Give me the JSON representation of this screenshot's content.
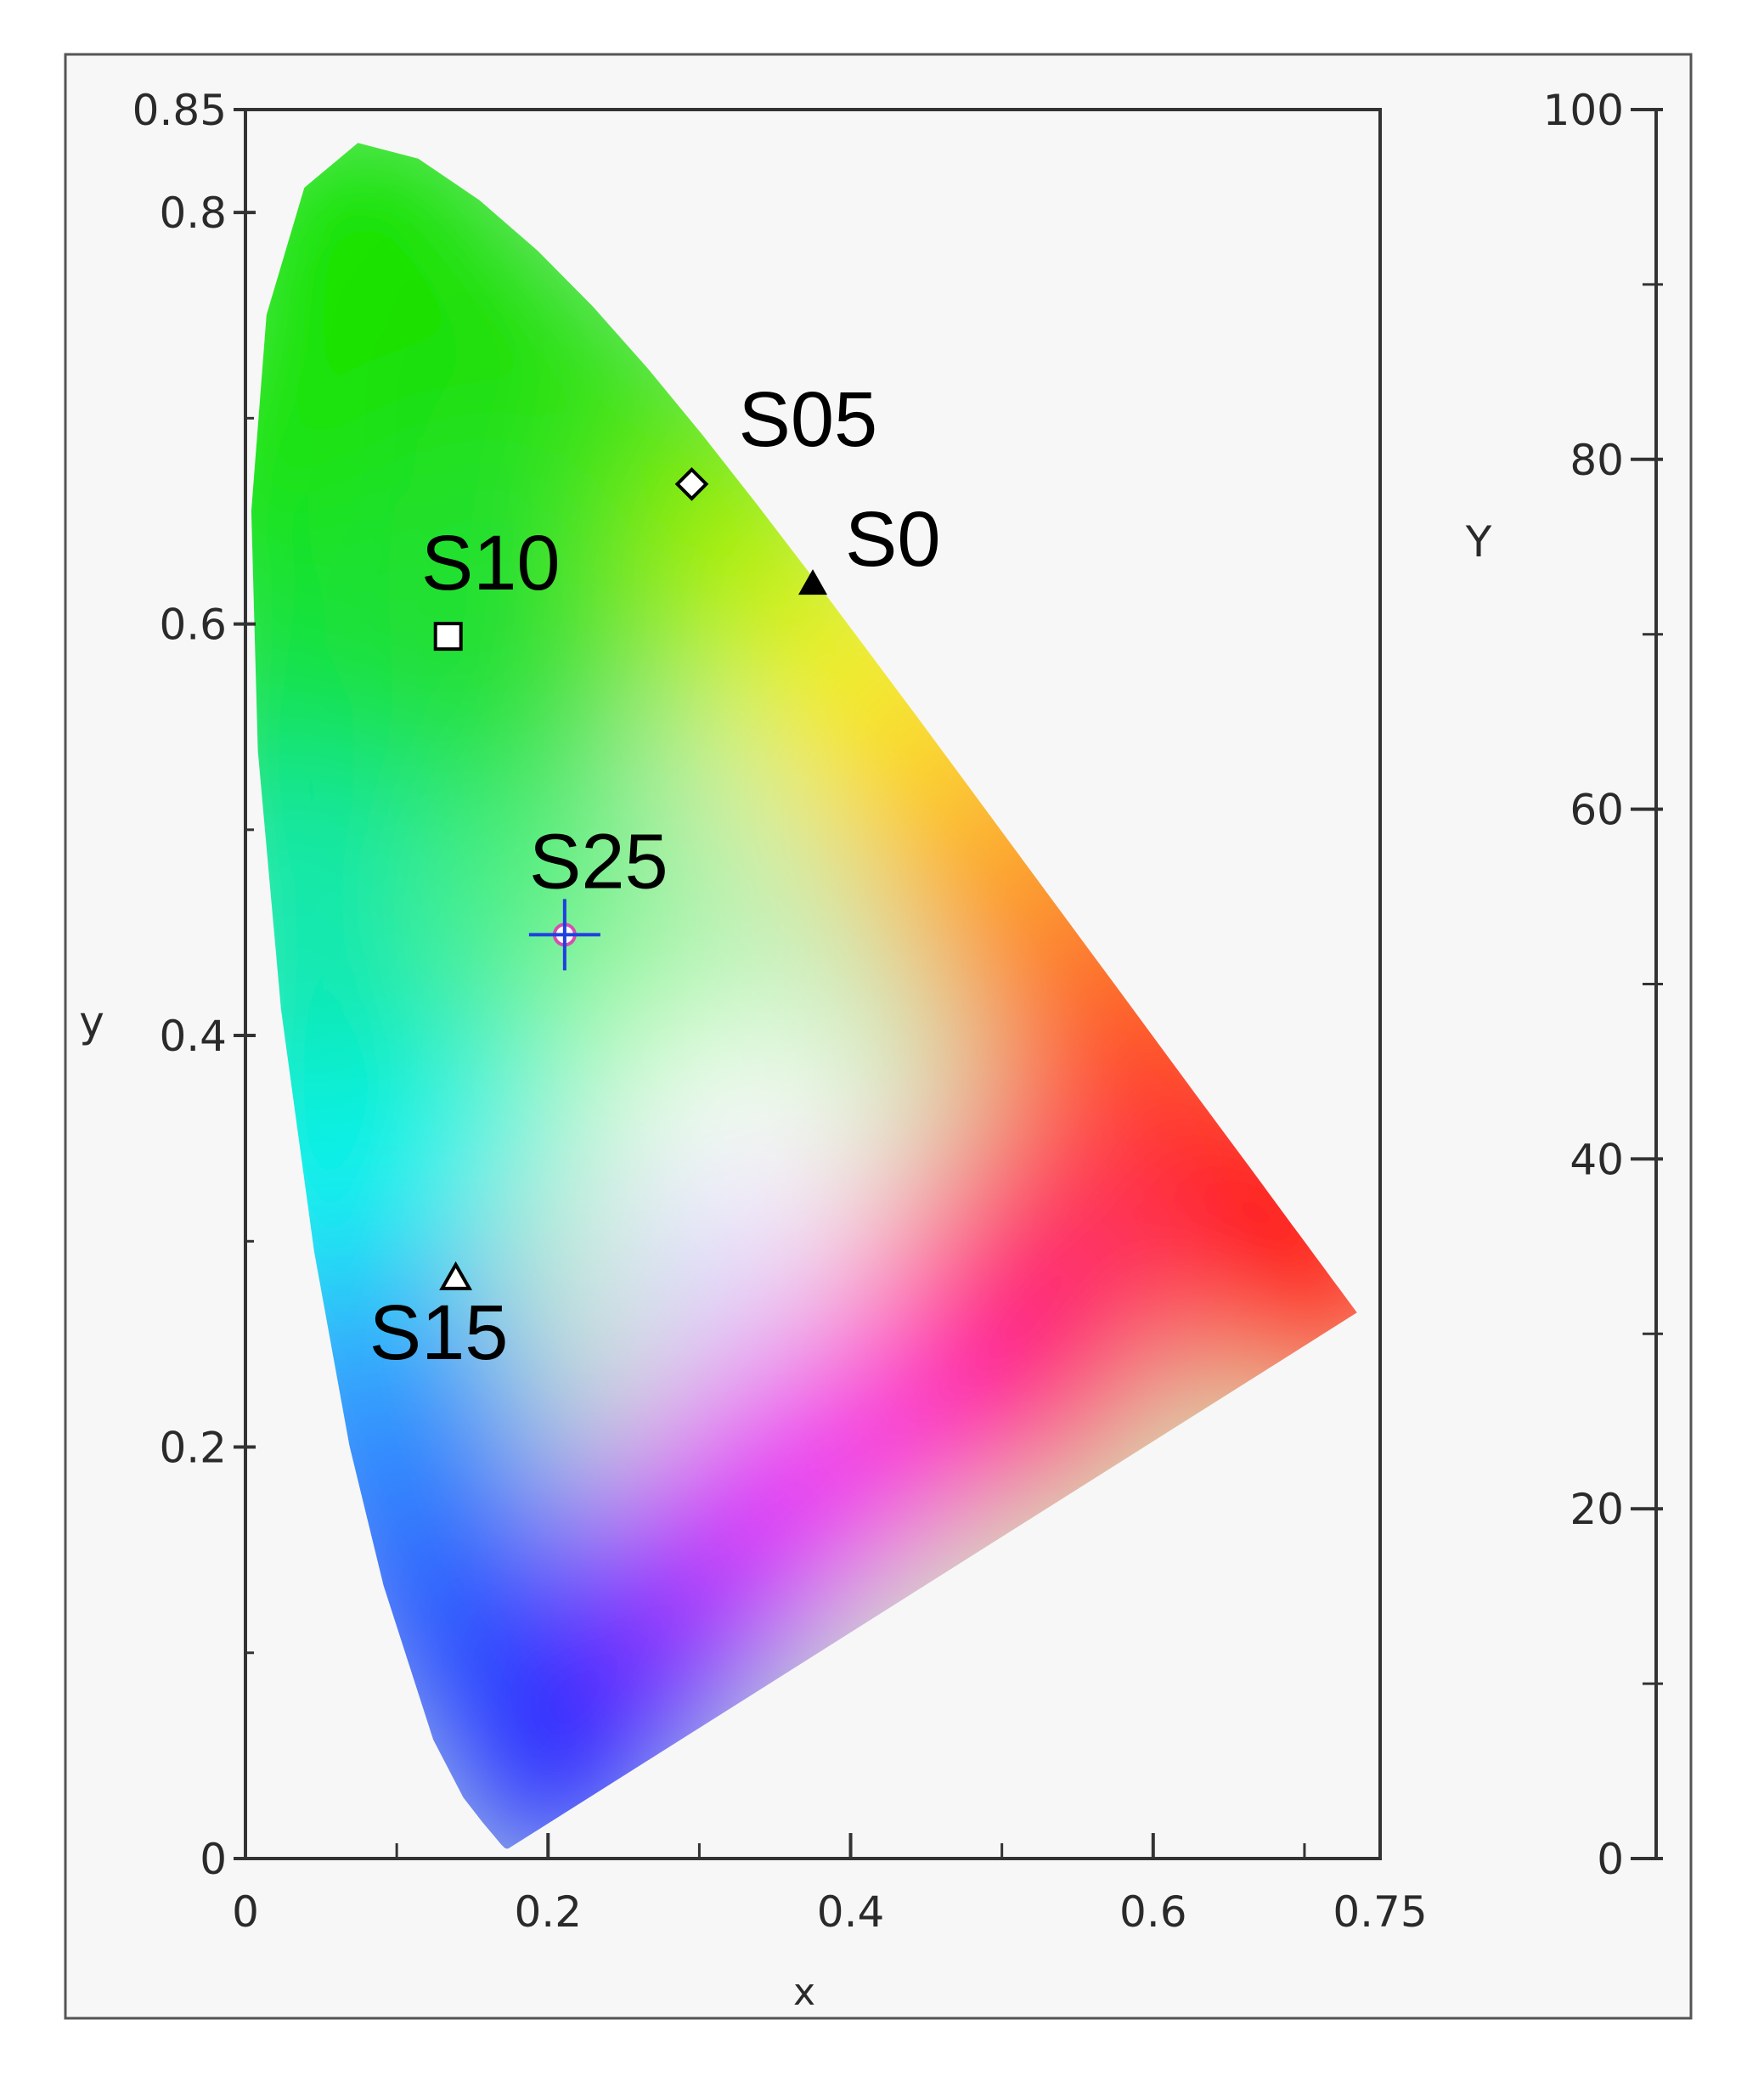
{
  "chart_data": {
    "type": "scatter",
    "title": "",
    "xlabel": "x",
    "ylabel": "y",
    "y2label": "Y",
    "xlim": [
      0,
      0.75
    ],
    "ylim": [
      0,
      0.85
    ],
    "y2lim": [
      0,
      100
    ],
    "x_ticks": [
      0,
      0.2,
      0.4,
      0.6,
      0.75
    ],
    "x_tick_labels": [
      "0",
      "0.2",
      "0.4",
      "0.6",
      "0.75"
    ],
    "y_ticks": [
      0,
      0.2,
      0.4,
      0.6,
      0.8,
      0.85
    ],
    "y_tick_labels": [
      "0",
      "0.2",
      "0.4",
      "0.6",
      "0.8",
      "0.85"
    ],
    "y2_ticks": [
      0,
      20,
      40,
      60,
      80,
      100
    ],
    "y2_tick_labels": [
      "0",
      "20",
      "40",
      "60",
      "80",
      "100"
    ],
    "grid": false,
    "background": "CIE 1931 xy chromaticity diagram (spectral locus)",
    "points": [
      {
        "label": "S0",
        "x": 0.375,
        "y": 0.62,
        "marker": "filled-triangle"
      },
      {
        "label": "S05",
        "x": 0.295,
        "y": 0.668,
        "marker": "open-diamond"
      },
      {
        "label": "S10",
        "x": 0.134,
        "y": 0.594,
        "marker": "open-square"
      },
      {
        "label": "S15",
        "x": 0.139,
        "y": 0.282,
        "marker": "open-triangle"
      },
      {
        "label": "S25",
        "x": 0.211,
        "y": 0.449,
        "marker": "crosshair-circle"
      }
    ],
    "colors": {
      "frame_background": "#f7f7f7",
      "axis": "#333333",
      "crosshair": "#1f3fe0",
      "crosshair_ring": "#d44fb0"
    }
  }
}
